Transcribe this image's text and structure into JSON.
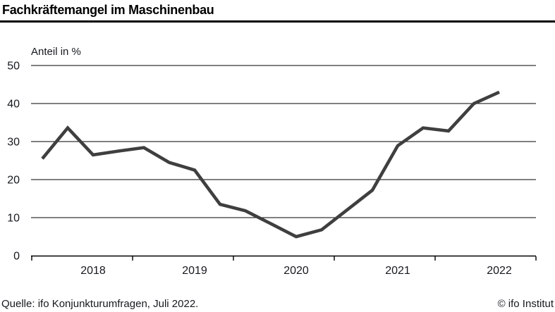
{
  "header": {
    "title": "Fachkräftemangel im Maschinenbau"
  },
  "chart": {
    "axis_label": "Anteil in %",
    "y_tick_labels": [
      "0",
      "10",
      "20",
      "30",
      "40",
      "50"
    ],
    "x_year_labels": [
      "2018",
      "2019",
      "2020",
      "2021",
      "2022"
    ]
  },
  "chart_data": {
    "type": "line",
    "title": "Fachkräftemangel im Maschinenbau",
    "ylabel": "Anteil in %",
    "ylim": [
      0,
      50
    ],
    "grid": true,
    "legend": "none",
    "line_color": "#3f3f3f",
    "x": [
      "Jan 2018",
      "Apr 2018",
      "Jul 2018",
      "Okt 2018",
      "Jan 2019",
      "Apr 2019",
      "Jul 2019",
      "Okt 2019",
      "Jan 2020",
      "Apr 2020",
      "Jul 2020",
      "Okt 2020",
      "Jan 2021",
      "Apr 2021",
      "Jul 2021",
      "Okt 2021",
      "Jan 2022",
      "Apr 2022",
      "Jul 2022"
    ],
    "values": [
      25.5,
      33.6,
      26.5,
      27.5,
      28.4,
      24.5,
      22.5,
      13.5,
      11.8,
      8.4,
      5.0,
      6.8,
      12.0,
      17.2,
      28.9,
      33.6,
      32.8,
      40.0,
      43.0
    ],
    "x_axis_year_labels": [
      "2018",
      "2019",
      "2020",
      "2021",
      "2022"
    ]
  },
  "footer": {
    "source": "Quelle: ifo Konjunkturumfragen, Juli 2022.",
    "copyright": "© ifo Institut"
  },
  "colors": {
    "line": "#3f3f3f",
    "axis": "#000000",
    "text": "#15191e",
    "background": "#ffffff"
  }
}
